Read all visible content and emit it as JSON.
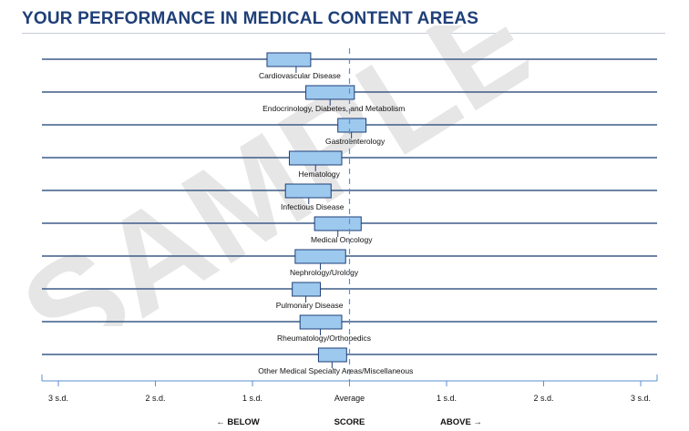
{
  "title": "YOUR PERFORMANCE IN MEDICAL CONTENT AREAS",
  "watermark": "SAMPLE",
  "colors": {
    "title": "#1f3f78",
    "row_line": "#3d5b87",
    "bar_fill": "#9dc9ee",
    "bar_stroke": "#1f3f78",
    "dashed_line": "#5b8fd1",
    "watermark": "#e6e6e6",
    "text": "#111111"
  },
  "chart_data": {
    "type": "range-bar",
    "xlim": [
      -3,
      3
    ],
    "x_ticks": [
      {
        "value": -3,
        "label": "3 s.d."
      },
      {
        "value": -2,
        "label": "2 s.d."
      },
      {
        "value": -1,
        "label": "1 s.d."
      },
      {
        "value": 0,
        "label": "Average"
      },
      {
        "value": 1,
        "label": "1 s.d."
      },
      {
        "value": 2,
        "label": "2 s.d."
      },
      {
        "value": 3,
        "label": "3 s.d."
      }
    ],
    "reference_line": 0,
    "axis_captions": {
      "below": "BELOW",
      "score": "SCORE",
      "above": "ABOVE"
    },
    "categories": [
      {
        "label": "Cardiovascular Disease",
        "low": -0.85,
        "high": -0.4,
        "score": -0.55
      },
      {
        "label": "Endocrinology, Diabetes, and Metabolism",
        "low": -0.45,
        "high": 0.05,
        "score": -0.2
      },
      {
        "label": "Gastroenterology",
        "low": -0.12,
        "high": 0.17,
        "score": 0.02
      },
      {
        "label": "Hematology",
        "low": -0.62,
        "high": -0.08,
        "score": -0.35
      },
      {
        "label": "Infectious Disease",
        "low": -0.66,
        "high": -0.19,
        "score": -0.42
      },
      {
        "label": "Medical Oncology",
        "low": -0.36,
        "high": 0.12,
        "score": -0.12
      },
      {
        "label": "Nephrology/Urology",
        "low": -0.56,
        "high": -0.04,
        "score": -0.3
      },
      {
        "label": "Pulmonary Disease",
        "low": -0.59,
        "high": -0.3,
        "score": -0.45
      },
      {
        "label": "Rheumatology/Orthopedics",
        "low": -0.51,
        "high": -0.08,
        "score": -0.3
      },
      {
        "label": "Other Medical Specialty Areas/Miscellaneous",
        "low": -0.32,
        "high": -0.03,
        "score": -0.18
      }
    ]
  }
}
